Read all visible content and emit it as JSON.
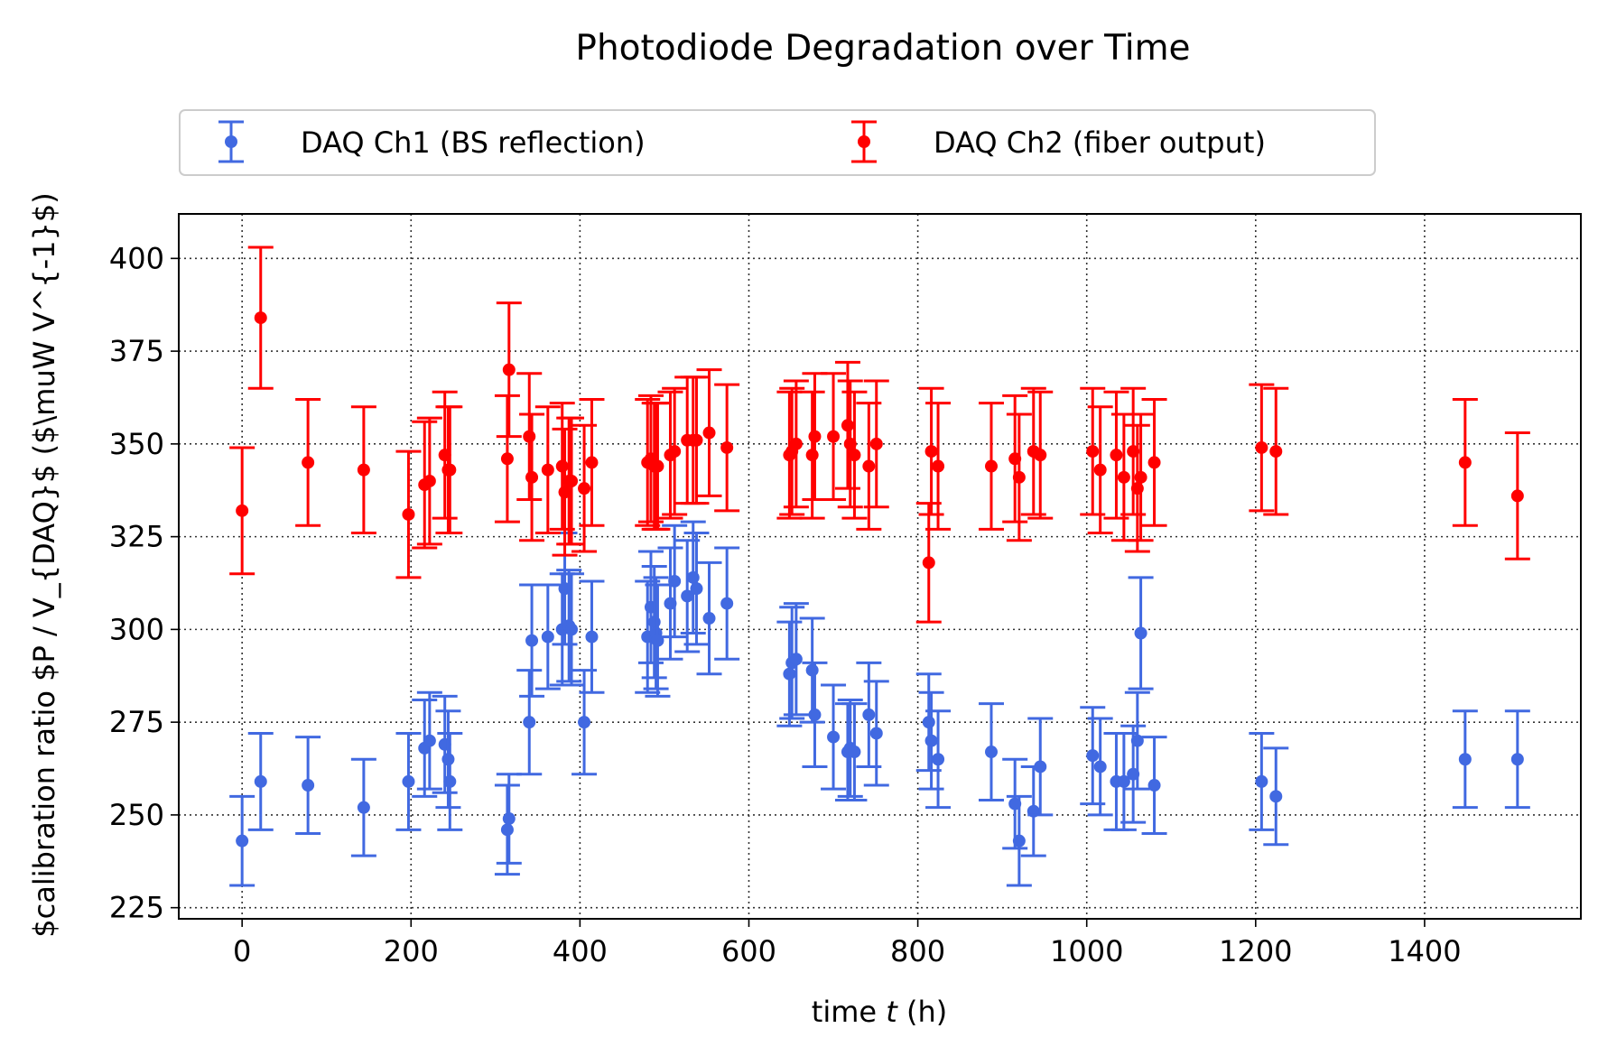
{
  "chart_data": {
    "type": "scatter",
    "title": "Photodiode Degradation over Time",
    "xlabel": "time t (h)",
    "xlabel_prefix": "time ",
    "xlabel_var": "t",
    "xlabel_suffix": " (h)",
    "ylabel": "$calibration ratio $P / V_{DAQ}$ ($\\muW V^{-1}$)",
    "xlim": [
      -75,
      1585
    ],
    "ylim": [
      222,
      412
    ],
    "xticks": [
      0,
      200,
      400,
      600,
      800,
      1000,
      1200,
      1400
    ],
    "yticks": [
      225,
      250,
      275,
      300,
      325,
      350,
      375,
      400
    ],
    "grid": true,
    "legend": {
      "placement": "top-center",
      "columns": 2
    },
    "series": [
      {
        "name": "DAQ Ch1 (BS reflection)",
        "color": "#4169e1",
        "points": [
          [
            0,
            243,
            12
          ],
          [
            22,
            259,
            13
          ],
          [
            78,
            258,
            13
          ],
          [
            144,
            252,
            13
          ],
          [
            197,
            259,
            13
          ],
          [
            216,
            268,
            13
          ],
          [
            222,
            270,
            13
          ],
          [
            240,
            269,
            13
          ],
          [
            244,
            265,
            13
          ],
          [
            246,
            259,
            13
          ],
          [
            314,
            246,
            12
          ],
          [
            316,
            249,
            12
          ],
          [
            340,
            275,
            14
          ],
          [
            343,
            297,
            15
          ],
          [
            362,
            298,
            14
          ],
          [
            379,
            300,
            15
          ],
          [
            382,
            311,
            15
          ],
          [
            387,
            301,
            15
          ],
          [
            390,
            300,
            15
          ],
          [
            405,
            275,
            14
          ],
          [
            414,
            298,
            15
          ],
          [
            480,
            298,
            15
          ],
          [
            484,
            306,
            15
          ],
          [
            488,
            302,
            15
          ],
          [
            490,
            299,
            15
          ],
          [
            492,
            297,
            15
          ],
          [
            507,
            307,
            15
          ],
          [
            512,
            313,
            15
          ],
          [
            527,
            309,
            15
          ],
          [
            534,
            314,
            15
          ],
          [
            538,
            311,
            15
          ],
          [
            553,
            303,
            15
          ],
          [
            574,
            307,
            15
          ],
          [
            648,
            288,
            14
          ],
          [
            651,
            291,
            15
          ],
          [
            656,
            292,
            15
          ],
          [
            675,
            289,
            14
          ],
          [
            678,
            277,
            14
          ],
          [
            700,
            271,
            14
          ],
          [
            717,
            267,
            13
          ],
          [
            720,
            268,
            13
          ],
          [
            725,
            267,
            13
          ],
          [
            742,
            277,
            14
          ],
          [
            751,
            272,
            14
          ],
          [
            813,
            275,
            13
          ],
          [
            816,
            270,
            13
          ],
          [
            824,
            265,
            13
          ],
          [
            887,
            267,
            13
          ],
          [
            915,
            253,
            12
          ],
          [
            920,
            243,
            12
          ],
          [
            937,
            251,
            12
          ],
          [
            945,
            263,
            13
          ],
          [
            1007,
            266,
            13
          ],
          [
            1016,
            263,
            13
          ],
          [
            1035,
            259,
            13
          ],
          [
            1044,
            259,
            13
          ],
          [
            1055,
            261,
            13
          ],
          [
            1060,
            270,
            13
          ],
          [
            1064,
            299,
            15
          ],
          [
            1080,
            258,
            13
          ],
          [
            1207,
            259,
            13
          ],
          [
            1224,
            255,
            13
          ],
          [
            1448,
            265,
            13
          ],
          [
            1510,
            265,
            13
          ]
        ]
      },
      {
        "name": "DAQ Ch2 (fiber output)",
        "color": "#ff0000",
        "points": [
          [
            0,
            332,
            17
          ],
          [
            22,
            384,
            19
          ],
          [
            78,
            345,
            17
          ],
          [
            144,
            343,
            17
          ],
          [
            197,
            331,
            17
          ],
          [
            216,
            339,
            17
          ],
          [
            222,
            340,
            17
          ],
          [
            240,
            347,
            17
          ],
          [
            244,
            343,
            17
          ],
          [
            246,
            343,
            17
          ],
          [
            314,
            346,
            17
          ],
          [
            316,
            370,
            18
          ],
          [
            340,
            352,
            17
          ],
          [
            343,
            341,
            17
          ],
          [
            362,
            343,
            17
          ],
          [
            379,
            344,
            17
          ],
          [
            382,
            337,
            17
          ],
          [
            387,
            340,
            17
          ],
          [
            390,
            340,
            17
          ],
          [
            405,
            338,
            17
          ],
          [
            414,
            345,
            17
          ],
          [
            480,
            345,
            17
          ],
          [
            484,
            346,
            17
          ],
          [
            488,
            344,
            17
          ],
          [
            490,
            344,
            17
          ],
          [
            492,
            344,
            17
          ],
          [
            507,
            347,
            17
          ],
          [
            512,
            348,
            17
          ],
          [
            527,
            351,
            17
          ],
          [
            534,
            351,
            17
          ],
          [
            538,
            351,
            17
          ],
          [
            553,
            353,
            17
          ],
          [
            574,
            349,
            17
          ],
          [
            648,
            347,
            17
          ],
          [
            651,
            348,
            17
          ],
          [
            656,
            350,
            17
          ],
          [
            675,
            347,
            17
          ],
          [
            678,
            352,
            17
          ],
          [
            700,
            352,
            17
          ],
          [
            717,
            355,
            17
          ],
          [
            720,
            350,
            17
          ],
          [
            725,
            347,
            17
          ],
          [
            742,
            344,
            17
          ],
          [
            751,
            350,
            17
          ],
          [
            813,
            318,
            16
          ],
          [
            816,
            348,
            17
          ],
          [
            824,
            344,
            17
          ],
          [
            887,
            344,
            17
          ],
          [
            915,
            346,
            17
          ],
          [
            920,
            341,
            17
          ],
          [
            937,
            348,
            17
          ],
          [
            945,
            347,
            17
          ],
          [
            1007,
            348,
            17
          ],
          [
            1016,
            343,
            17
          ],
          [
            1035,
            347,
            17
          ],
          [
            1044,
            341,
            17
          ],
          [
            1055,
            348,
            17
          ],
          [
            1060,
            338,
            17
          ],
          [
            1064,
            341,
            17
          ],
          [
            1080,
            345,
            17
          ],
          [
            1207,
            349,
            17
          ],
          [
            1224,
            348,
            17
          ],
          [
            1448,
            345,
            17
          ],
          [
            1510,
            336,
            17
          ]
        ]
      }
    ]
  }
}
